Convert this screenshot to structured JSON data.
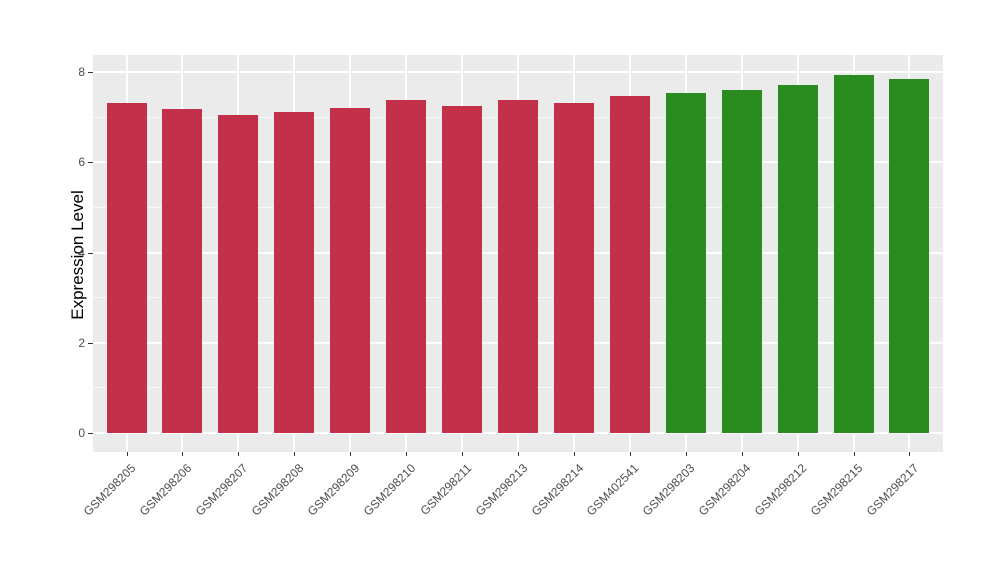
{
  "chart_data": {
    "type": "bar",
    "title": "",
    "xlabel": "",
    "ylabel": "Expression Level",
    "ylim": [
      0,
      8.4
    ],
    "yticks_major": [
      0,
      2,
      4,
      6,
      8
    ],
    "yticks_minor": [
      1,
      3,
      5,
      7
    ],
    "grid": "on",
    "legend_position": "none",
    "panel_background": "#EBEBEB",
    "gridline_color": "#FFFFFF",
    "categories": [
      "GSM298205",
      "GSM298206",
      "GSM298207",
      "GSM298208",
      "GSM298209",
      "GSM298210",
      "GSM298211",
      "GSM298213",
      "GSM298214",
      "GSM402541",
      "GSM298203",
      "GSM298204",
      "GSM298212",
      "GSM298215",
      "GSM298217"
    ],
    "values": [
      7.31,
      7.19,
      7.05,
      7.11,
      7.21,
      7.38,
      7.24,
      7.38,
      7.32,
      7.47,
      7.53,
      7.6,
      7.71,
      7.93,
      7.84
    ],
    "groups": [
      "red",
      "red",
      "red",
      "red",
      "red",
      "red",
      "red",
      "red",
      "red",
      "red",
      "green",
      "green",
      "green",
      "green",
      "green"
    ],
    "group_colors": {
      "red": "#C2304A",
      "green": "#2A8C1E"
    }
  }
}
